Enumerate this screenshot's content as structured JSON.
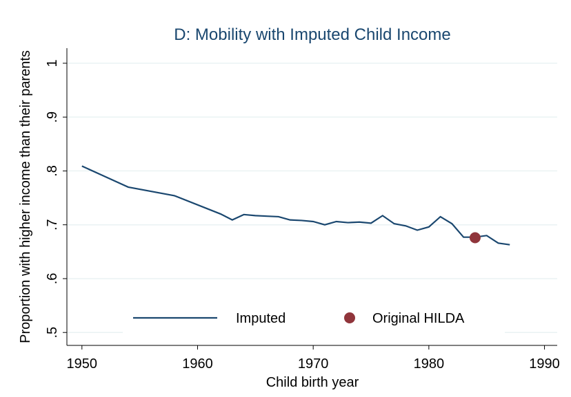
{
  "chart_data": {
    "type": "line",
    "title": "D: Mobility with Imputed Child Income",
    "x_label": "Child birth year",
    "y_label": "Proportion with higher income than their parents",
    "x": [
      1950,
      1954,
      1958,
      1962,
      1963,
      1964,
      1965,
      1966,
      1967,
      1968,
      1969,
      1970,
      1971,
      1972,
      1973,
      1974,
      1975,
      1976,
      1977,
      1978,
      1979,
      1980,
      1981,
      1982,
      1983,
      1984,
      1985,
      1986,
      1987
    ],
    "series": [
      {
        "name": "Imputed",
        "color": "#1a476f",
        "mark": "line",
        "values": [
          0.809,
          0.77,
          0.754,
          0.72,
          0.709,
          0.719,
          0.717,
          0.716,
          0.715,
          0.709,
          0.708,
          0.706,
          0.7,
          0.706,
          0.704,
          0.705,
          0.703,
          0.717,
          0.702,
          0.698,
          0.69,
          0.696,
          0.715,
          0.702,
          0.677,
          0.677,
          0.68,
          0.666,
          0.663
        ]
      },
      {
        "name": "Original HILDA",
        "color": "#90353b",
        "mark": "marker",
        "x": [
          1984
        ],
        "values": [
          0.676
        ]
      }
    ],
    "xlim": [
      1948.7,
      1991.1
    ],
    "xticks": [
      1950,
      1960,
      1970,
      1980,
      1990
    ],
    "ylim": [
      0.476,
      1.028
    ],
    "yticks": [
      {
        "value": 0.5,
        "label": ".5"
      },
      {
        "value": 0.6,
        "label": ".6"
      },
      {
        "value": 0.7,
        "label": ".7"
      },
      {
        "value": 0.8,
        "label": ".8"
      },
      {
        "value": 0.9,
        "label": ".9"
      },
      1
    ],
    "grid": true,
    "legend": "bottom"
  }
}
